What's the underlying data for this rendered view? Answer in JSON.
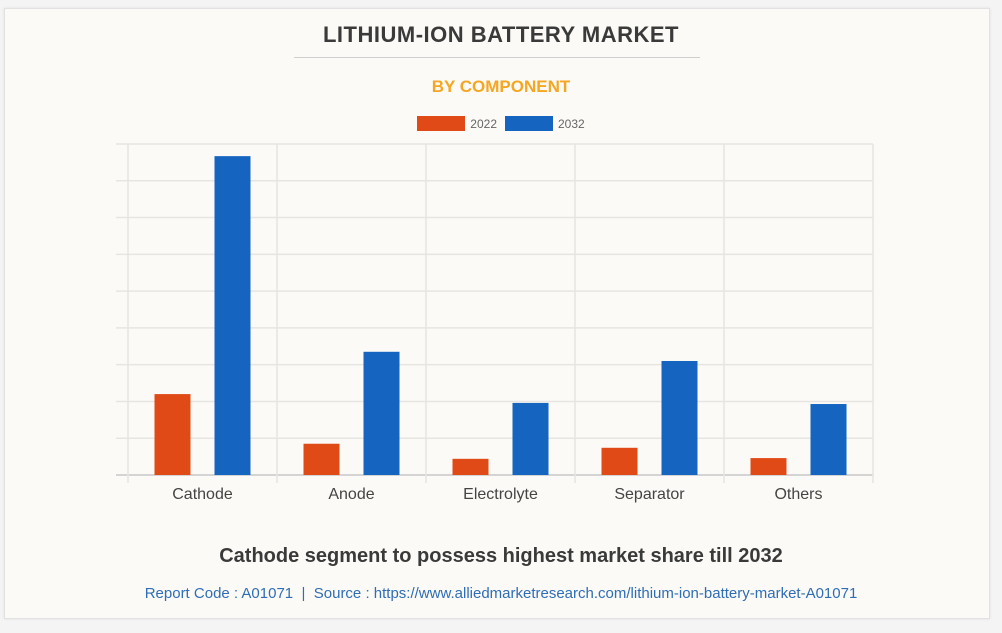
{
  "header": {
    "title": "LITHIUM-ION BATTERY MARKET",
    "subtitle": "BY COMPONENT"
  },
  "footer": {
    "insight": "Cathode segment to possess highest market share till 2032",
    "report_code_label": "Report Code : A01071",
    "separator": "|",
    "source_label": "Source : https://www.alliedmarketresearch.com/lithium-ion-battery-market-A01071"
  },
  "colors": {
    "series_2022": "#e04a17",
    "series_2032": "#1565c0",
    "title": "#3a3a3a",
    "subtitle": "#f5a623",
    "source": "#2f6db5"
  },
  "chart_data": {
    "type": "bar",
    "title": "LITHIUM-ION BATTERY MARKET",
    "subtitle": "BY COMPONENT",
    "xlabel": "",
    "ylabel": "",
    "y_units": "relative (gridline units, no axis labels shown)",
    "ylim": [
      0,
      9
    ],
    "grid": true,
    "legend_position": "top-center",
    "categories": [
      "Cathode",
      "Anode",
      "Electrolyte",
      "Separator",
      "Others"
    ],
    "series": [
      {
        "name": "2022",
        "color": "#e04a17",
        "values": [
          2.2,
          0.85,
          0.44,
          0.74,
          0.46
        ]
      },
      {
        "name": "2032",
        "color": "#1565c0",
        "values": [
          8.67,
          3.35,
          1.96,
          3.1,
          1.93
        ]
      }
    ]
  }
}
